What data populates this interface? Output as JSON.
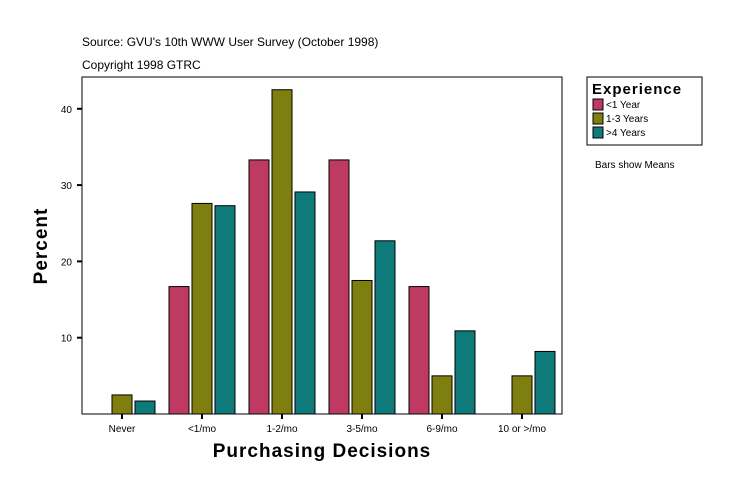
{
  "chart_data": {
    "type": "bar",
    "source": "Source: GVU's 10th WWW User Survey (October 1998)",
    "copyright": "Copyright 1998 GTRC",
    "xlabel": "Purchasing Decisions",
    "ylabel": "Percent",
    "categories": [
      "Never",
      "<1/mo",
      "1-2/mo",
      "3-5/mo",
      "6-9/mo",
      "10 or >/mo"
    ],
    "yticks": [
      10,
      20,
      30,
      40
    ],
    "ylim": [
      0,
      44
    ],
    "grid": false,
    "legend": {
      "title": "Experience",
      "placement": "right"
    },
    "note": "Bars show Means",
    "series": [
      {
        "name": "<1 Year",
        "color": "#BF3A63",
        "values": [
          null,
          16.7,
          33.3,
          33.3,
          16.7,
          null
        ]
      },
      {
        "name": "1-3 Years",
        "color": "#7F7F10",
        "values": [
          2.5,
          27.6,
          42.5,
          17.5,
          5.0,
          5.0
        ]
      },
      {
        "name": ">4 Years",
        "color": "#0E7A7A",
        "values": [
          1.7,
          27.3,
          29.1,
          22.7,
          10.9,
          8.2
        ]
      }
    ]
  }
}
